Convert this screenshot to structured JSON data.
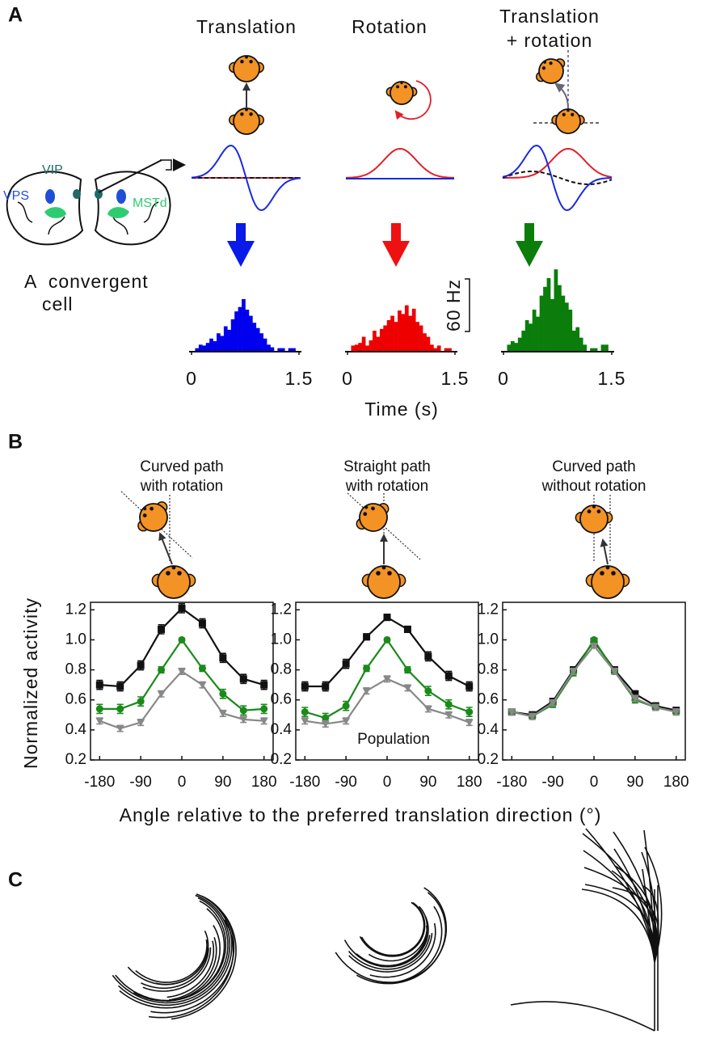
{
  "panel_labels": {
    "a": "A",
    "b": "B",
    "c": "C"
  },
  "panel_a": {
    "brain_labels": [
      "VIP",
      "VPS",
      "MSTd"
    ],
    "cell_label": [
      "A  convergent",
      "cell"
    ],
    "xlabel": "Time (s)",
    "scalebar": {
      "value": 60,
      "label": "60 Hz"
    }
  },
  "panel_b": {
    "ylabel": "Normalized activity",
    "xlabel": "Angle relative to the preferred translation direction (°)"
  },
  "chart_data": [
    {
      "type": "histogram",
      "title": "Translation",
      "color": "#0000ee",
      "xlim": [
        0,
        1.5
      ],
      "xticks": [
        0,
        1.5
      ],
      "bins": [
        0.05,
        0.1,
        0.15,
        0.2,
        0.25,
        0.3,
        0.35,
        0.4,
        0.45,
        0.5,
        0.55,
        0.6,
        0.65,
        0.7,
        0.75,
        0.8,
        0.85,
        0.9,
        0.95,
        1.0,
        1.05,
        1.1,
        1.15,
        1.2,
        1.25,
        1.3,
        1.35,
        1.4,
        1.45
      ],
      "counts": [
        4,
        8,
        7,
        10,
        15,
        12,
        21,
        18,
        29,
        25,
        37,
        46,
        51,
        60,
        48,
        41,
        33,
        27,
        21,
        15,
        8,
        5,
        0,
        4,
        4,
        0,
        4,
        4
      ]
    },
    {
      "type": "histogram",
      "title": "Rotation",
      "color": "#ee0000",
      "xlim": [
        0,
        1.5
      ],
      "xticks": [
        0,
        1.5
      ],
      "bins": [
        0.05,
        0.1,
        0.15,
        0.2,
        0.25,
        0.3,
        0.35,
        0.4,
        0.45,
        0.5,
        0.55,
        0.6,
        0.65,
        0.7,
        0.75,
        0.8,
        0.85,
        0.9,
        0.95,
        1.0,
        1.05,
        1.1,
        1.15,
        1.2,
        1.25,
        1.3,
        1.35,
        1.4,
        1.45
      ],
      "counts": [
        7,
        8,
        10,
        17,
        7,
        13,
        24,
        17,
        26,
        30,
        36,
        41,
        34,
        47,
        43,
        53,
        41,
        49,
        34,
        30,
        21,
        17,
        8,
        4,
        7,
        0,
        4,
        4
      ]
    },
    {
      "type": "histogram",
      "title": [
        "Translation",
        "+ rotation"
      ],
      "color": "#0a7d0a",
      "xlim": [
        0,
        1.5
      ],
      "xticks": [
        0,
        1.5
      ],
      "bins": [
        0.05,
        0.1,
        0.15,
        0.2,
        0.25,
        0.3,
        0.35,
        0.4,
        0.45,
        0.5,
        0.55,
        0.6,
        0.65,
        0.7,
        0.75,
        0.8,
        0.85,
        0.9,
        0.95,
        1.0,
        1.05,
        1.1,
        1.15,
        1.2,
        1.25,
        1.3,
        1.35,
        1.4,
        1.45
      ],
      "counts": [
        8,
        12,
        10,
        16,
        24,
        36,
        32,
        48,
        40,
        64,
        74,
        84,
        60,
        94,
        76,
        64,
        56,
        48,
        24,
        28,
        16,
        8,
        0,
        4,
        4,
        0,
        8,
        8
      ]
    },
    {
      "type": "line",
      "title": [
        "Curved path",
        "with rotation"
      ],
      "x": [
        -180,
        -135,
        -90,
        -45,
        0,
        45,
        90,
        135,
        180
      ],
      "xlim": [
        -200,
        200
      ],
      "xticks": [
        -180,
        -90,
        0,
        90,
        180
      ],
      "ylim": [
        0.2,
        1.25
      ],
      "yticks": [
        0.2,
        0.4,
        0.6,
        0.8,
        {
          "value": 1,
          "label": "1.0"
        },
        1.2
      ],
      "series": [
        {
          "color": "#111111",
          "marker": "square",
          "values": [
            0.7,
            0.69,
            0.83,
            1.07,
            1.21,
            1.11,
            0.88,
            0.74,
            0.7
          ],
          "errors": [
            0.03,
            0.03,
            0.03,
            0.03,
            0.03,
            0.03,
            0.03,
            0.03,
            0.03
          ]
        },
        {
          "color": "#1a8a1a",
          "marker": "circle",
          "values": [
            0.54,
            0.54,
            0.59,
            0.8,
            1.0,
            0.81,
            0.64,
            0.53,
            0.54
          ],
          "errors": [
            0.03,
            0.03,
            0.03,
            0.02,
            0.01,
            0.02,
            0.03,
            0.03,
            0.03
          ]
        },
        {
          "color": "#888888",
          "marker": "triangle",
          "values": [
            0.46,
            0.41,
            0.45,
            0.64,
            0.79,
            0.7,
            0.51,
            0.47,
            0.46
          ],
          "errors": [
            0.02,
            0.02,
            0.02,
            0.02,
            0.02,
            0.02,
            0.02,
            0.02,
            0.02
          ]
        }
      ]
    },
    {
      "type": "line",
      "title": [
        "Straight path",
        "with rotation"
      ],
      "x": [
        -180,
        -135,
        -90,
        -45,
        0,
        45,
        90,
        135,
        180
      ],
      "xlim": [
        -200,
        200
      ],
      "xticks": [
        -180,
        -90,
        0,
        90,
        180
      ],
      "ylim": [
        0.2,
        1.25
      ],
      "yticks": [
        0.2,
        0.4,
        0.6,
        0.8,
        {
          "value": 1,
          "label": "1.0"
        },
        1.2
      ],
      "annotation": "Population",
      "series": [
        {
          "color": "#111111",
          "marker": "square",
          "values": [
            0.69,
            0.69,
            0.84,
            1.02,
            1.15,
            1.07,
            0.89,
            0.76,
            0.69
          ],
          "errors": [
            0.03,
            0.03,
            0.03,
            0.02,
            0.02,
            0.02,
            0.03,
            0.03,
            0.03
          ]
        },
        {
          "color": "#1a8a1a",
          "marker": "circle",
          "values": [
            0.52,
            0.48,
            0.56,
            0.81,
            1.0,
            0.8,
            0.66,
            0.57,
            0.52
          ],
          "errors": [
            0.03,
            0.03,
            0.03,
            0.02,
            0.01,
            0.02,
            0.03,
            0.03,
            0.03
          ]
        },
        {
          "color": "#888888",
          "marker": "triangle",
          "values": [
            0.46,
            0.44,
            0.46,
            0.66,
            0.74,
            0.68,
            0.54,
            0.5,
            0.45
          ],
          "errors": [
            0.02,
            0.02,
            0.02,
            0.02,
            0.02,
            0.02,
            0.02,
            0.02,
            0.02
          ]
        }
      ]
    },
    {
      "type": "line",
      "title": [
        "Curved path",
        "without rotation"
      ],
      "x": [
        -180,
        -135,
        -90,
        -45,
        0,
        45,
        90,
        135,
        180
      ],
      "xlim": [
        -200,
        200
      ],
      "xticks": [
        -180,
        -90,
        0,
        90,
        180
      ],
      "ylim": [
        0.2,
        1.25
      ],
      "yticks": [
        0.2,
        0.4,
        0.6,
        0.8,
        {
          "value": 1,
          "label": "1.0"
        },
        1.2
      ],
      "series": [
        {
          "color": "#111111",
          "marker": "square",
          "values": [
            0.52,
            0.5,
            0.59,
            0.8,
            0.99,
            0.8,
            0.64,
            0.56,
            0.53
          ],
          "errors": [
            0.02,
            0.02,
            0.02,
            0.02,
            0.01,
            0.02,
            0.02,
            0.02,
            0.02
          ]
        },
        {
          "color": "#1a8a1a",
          "marker": "circle",
          "values": [
            0.52,
            0.49,
            0.57,
            0.78,
            1.0,
            0.79,
            0.6,
            0.55,
            0.52
          ],
          "errors": [
            0.02,
            0.02,
            0.02,
            0.02,
            0.01,
            0.02,
            0.02,
            0.02,
            0.02
          ]
        },
        {
          "color": "#888888",
          "marker": "triangle",
          "values": [
            0.52,
            0.49,
            0.58,
            0.79,
            0.96,
            0.79,
            0.61,
            0.55,
            0.52
          ],
          "errors": [
            0.02,
            0.02,
            0.02,
            0.02,
            0.01,
            0.02,
            0.02,
            0.02,
            0.02
          ]
        }
      ]
    }
  ]
}
